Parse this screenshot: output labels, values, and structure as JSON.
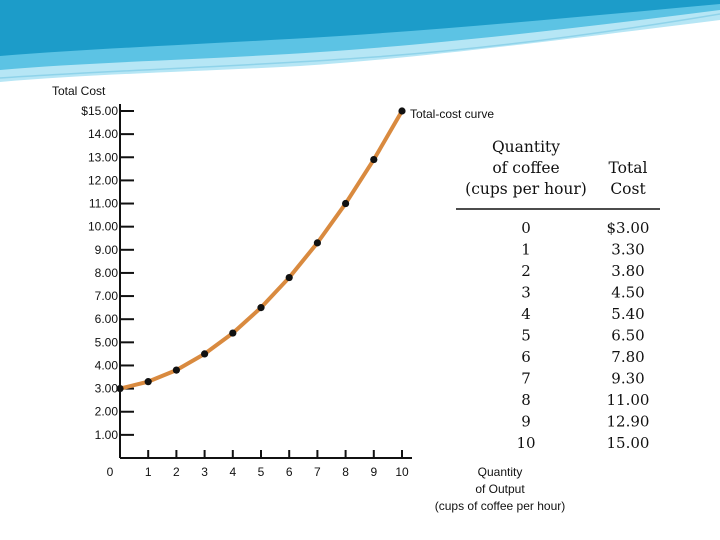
{
  "slide": {
    "banner_colors": [
      "#1c9cc9",
      "#5cc3e4",
      "#b6e6f5"
    ]
  },
  "chart_data": {
    "type": "line",
    "title": "",
    "ylabel": "Total Cost",
    "xlabel": "Quantity\nof Output\n(cups of coffee per hour)",
    "x": [
      0,
      1,
      2,
      3,
      4,
      5,
      6,
      7,
      8,
      9,
      10
    ],
    "y": [
      3.0,
      3.3,
      3.8,
      4.5,
      5.4,
      6.5,
      7.8,
      9.3,
      11.0,
      12.9,
      15.0
    ],
    "xlim": [
      0,
      10
    ],
    "ylim": [
      0,
      15
    ],
    "x_ticks": [
      "0",
      "1",
      "2",
      "3",
      "4",
      "5",
      "6",
      "7",
      "8",
      "9",
      "10"
    ],
    "y_ticks": [
      {
        "value": 1,
        "label": "1.00"
      },
      {
        "value": 2,
        "label": "2.00"
      },
      {
        "value": 3,
        "label": "3.00"
      },
      {
        "value": 4,
        "label": "4.00"
      },
      {
        "value": 5,
        "label": "5.00"
      },
      {
        "value": 6,
        "label": "6.00"
      },
      {
        "value": 7,
        "label": "7.00"
      },
      {
        "value": 8,
        "label": "8.00"
      },
      {
        "value": 9,
        "label": "9.00"
      },
      {
        "value": 10,
        "label": "10.00"
      },
      {
        "value": 11,
        "label": "11.00"
      },
      {
        "value": 12,
        "label": "12.00"
      },
      {
        "value": 13,
        "label": "13.00"
      },
      {
        "value": 14,
        "label": "14.00"
      },
      {
        "value": 15,
        "label": "$15.00"
      }
    ],
    "annotation": "Total-cost curve",
    "line_color": "#d98a3f",
    "marker_color": "#111111",
    "grid": false
  },
  "table": {
    "col1_header": "Quantity\nof coffee\n(cups per hour)",
    "col2_header": "Total\nCost",
    "rows": [
      [
        "0",
        "$3.00"
      ],
      [
        "1",
        "3.30"
      ],
      [
        "2",
        "3.80"
      ],
      [
        "3",
        "4.50"
      ],
      [
        "4",
        "5.40"
      ],
      [
        "5",
        "6.50"
      ],
      [
        "6",
        "7.80"
      ],
      [
        "7",
        "9.30"
      ],
      [
        "8",
        "11.00"
      ],
      [
        "9",
        "12.90"
      ],
      [
        "10",
        "15.00"
      ]
    ]
  }
}
